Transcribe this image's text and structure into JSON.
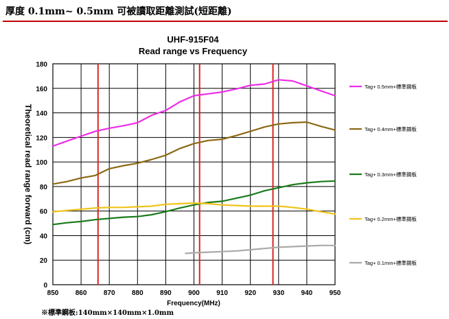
{
  "page": {
    "heading": "厚度 0.1mm~ 0.5mm 可被讀取距離測試(短距離)",
    "footnote": "※標準鋼板:140mm×140mm×1.0mm"
  },
  "chart_data": {
    "type": "line",
    "title": "UHF-915F04",
    "subtitle": "Read range vs Frequency",
    "xlabel": "Frequency(MHz)",
    "ylabel": "Theoretical read range forward (cm)",
    "xlim": [
      850,
      950
    ],
    "ylim": [
      0,
      180
    ],
    "xticks": [
      850,
      860,
      870,
      880,
      890,
      900,
      910,
      920,
      930,
      940,
      950
    ],
    "yticks": [
      0,
      20,
      40,
      60,
      80,
      100,
      120,
      140,
      160,
      180
    ],
    "grid": true,
    "legend_position": "right",
    "markers": [
      {
        "x": 866,
        "color": "#e0201c"
      },
      {
        "x": 902,
        "color": "#e0201c"
      },
      {
        "x": 928,
        "color": "#e0201c"
      }
    ],
    "series": [
      {
        "name": "Tag+ 0.5mm+標準鋼板",
        "color": "#ee2ce8",
        "x": [
          850,
          855,
          860,
          865,
          870,
          875,
          880,
          885,
          890,
          895,
          900,
          905,
          910,
          915,
          920,
          925,
          930,
          935,
          940,
          945,
          950
        ],
        "y": [
          113,
          117,
          121,
          125,
          127.5,
          129.5,
          132,
          138,
          142,
          149,
          154,
          155.5,
          157,
          159.5,
          162.5,
          163.5,
          167,
          166,
          162,
          158,
          154
        ]
      },
      {
        "name": "Tag+ 0.4mm+標準鋼板",
        "color": "#8b6914",
        "x": [
          850,
          855,
          860,
          865,
          870,
          875,
          880,
          885,
          890,
          895,
          900,
          905,
          910,
          915,
          920,
          925,
          930,
          935,
          940,
          945,
          950
        ],
        "y": [
          82,
          84,
          87,
          89,
          94.5,
          97,
          99,
          102,
          105.5,
          111,
          115,
          117.5,
          118.5,
          121.5,
          125,
          128.5,
          131,
          132,
          132.5,
          129,
          126
        ]
      },
      {
        "name": "Tag+ 0.3mm+標準鋼板",
        "color": "#1a7a1a",
        "x": [
          850,
          855,
          860,
          865,
          870,
          875,
          880,
          885,
          890,
          895,
          900,
          905,
          910,
          915,
          920,
          925,
          930,
          935,
          940,
          945,
          950
        ],
        "y": [
          49,
          50.5,
          51.5,
          53,
          54,
          55,
          55.5,
          57,
          59.5,
          62.5,
          65,
          67,
          68,
          70.5,
          73,
          76.5,
          79,
          81.5,
          83,
          84,
          84.5
        ]
      },
      {
        "name": "Tag+ 0.2mm+標準鋼板",
        "color": "#f2c318",
        "x": [
          850,
          855,
          860,
          865,
          870,
          875,
          880,
          885,
          890,
          895,
          900,
          905,
          910,
          915,
          920,
          925,
          930,
          935,
          940,
          945,
          950
        ],
        "y": [
          59.5,
          60.5,
          61.5,
          62.5,
          63,
          63,
          63.5,
          64,
          65.5,
          66,
          66.5,
          66,
          65,
          64.5,
          64,
          64,
          64,
          63,
          61.5,
          59.5,
          57.5
        ]
      },
      {
        "name": "Tag+ 0.1mm+標準鋼板",
        "color": "#a9a9a9",
        "x": [
          897,
          900,
          905,
          910,
          915,
          920,
          925,
          930,
          935,
          940,
          945,
          950
        ],
        "y": [
          25.5,
          26,
          26.5,
          27,
          27.5,
          28.5,
          29.5,
          30.5,
          31,
          31.5,
          32,
          32
        ]
      }
    ]
  }
}
